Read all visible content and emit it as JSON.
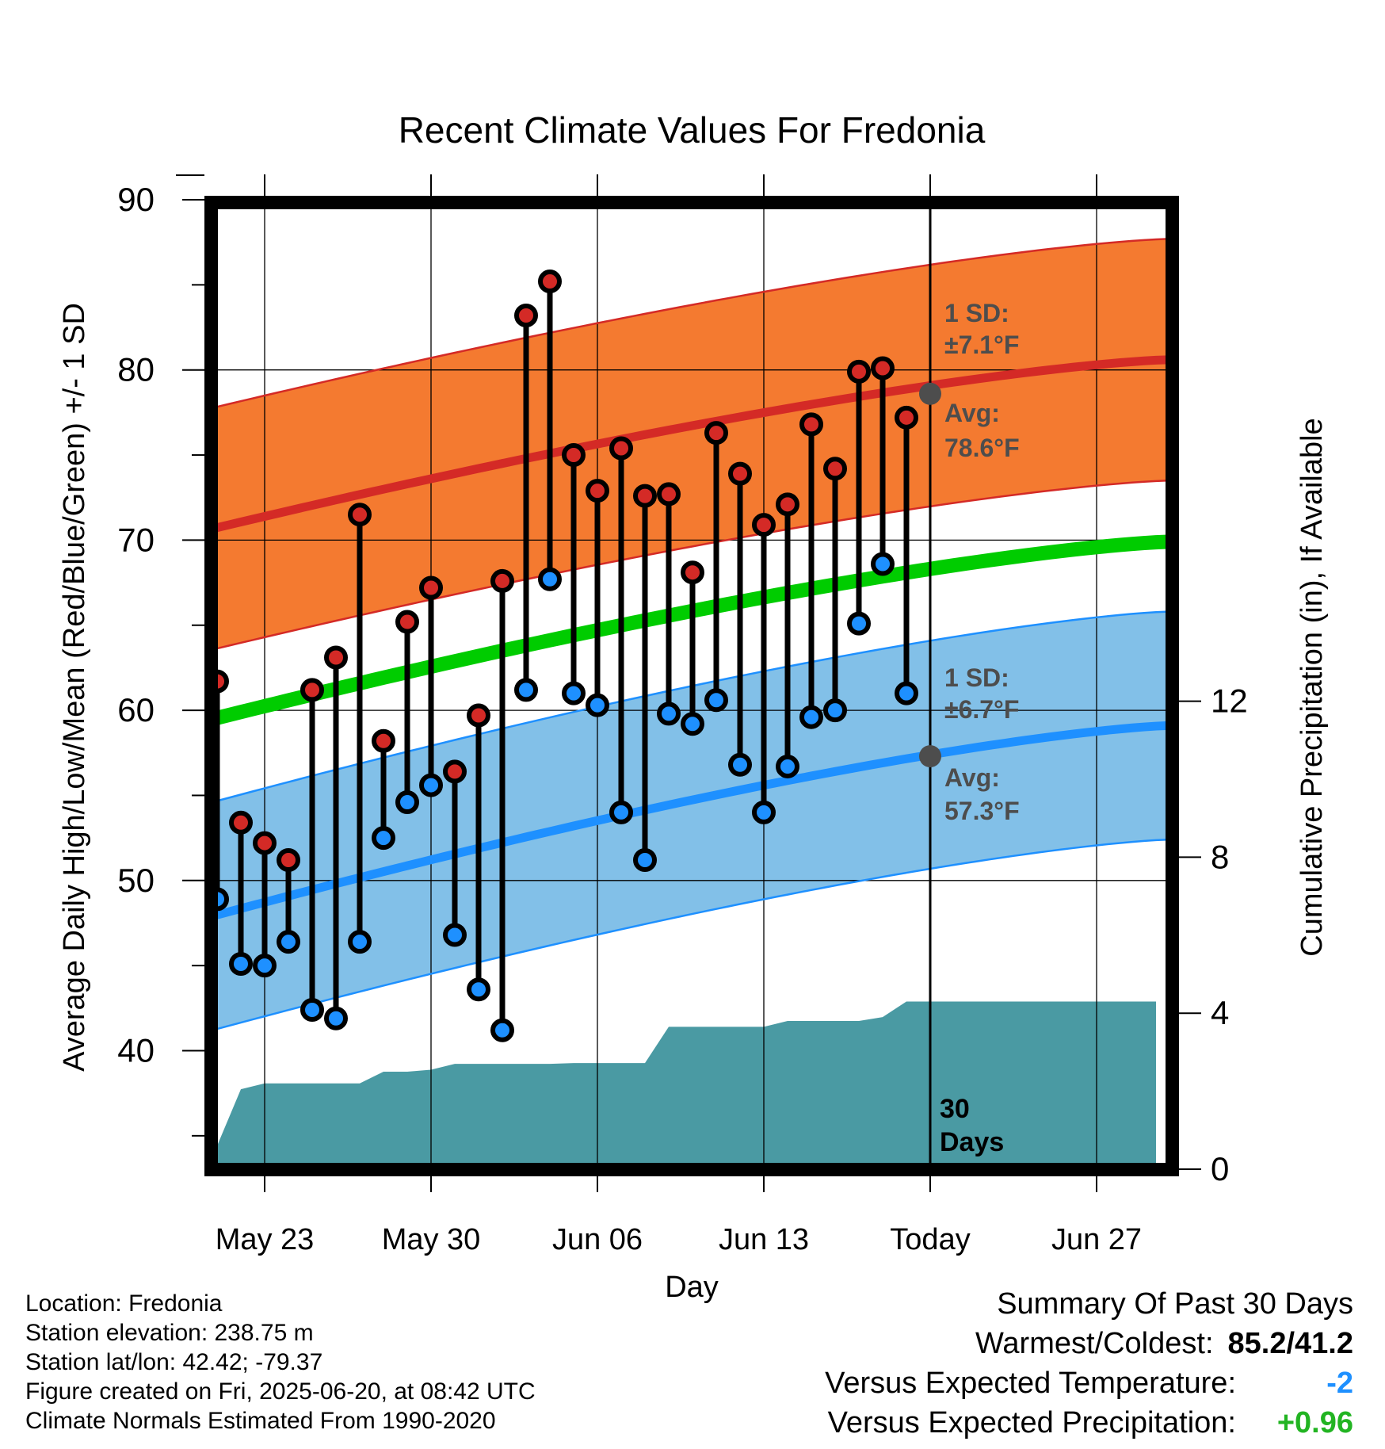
{
  "chart_data": {
    "type": "line",
    "title": "Recent Climate Values For Fredonia",
    "xlabel": "Day",
    "ylabel": "Average Daily High/Low/Mean (Red/Blue/Green) +/- 1 SD",
    "y2label": "Cumulative Precipitation (in), If Available",
    "ylim": [
      35,
      90
    ],
    "y2lim": [
      0,
      24
    ],
    "x_tick_labels": [
      "May 23",
      "May 30",
      "Jun 06",
      "Jun 13",
      "Today",
      "Jun 27"
    ],
    "x_tick_days": [
      2,
      9,
      16,
      23,
      30,
      37
    ],
    "xlim_days": [
      -1,
      40
    ],
    "y_ticks": [
      40,
      50,
      60,
      70,
      80,
      90
    ],
    "y2_ticks": [
      0,
      4,
      8,
      12
    ],
    "grid": true,
    "today_day": 30,
    "today_label": "30 Days",
    "colors": {
      "high_band": "#f47a30",
      "high_line": "#d42a26",
      "low_band": "#82c0e8",
      "low_line": "#1e90ff",
      "mean_line": "#00cc00",
      "precip": "#4a9aa3",
      "annotation": "#4d4d4d",
      "marker_high": "#d42a26",
      "marker_low": "#1e90ff"
    },
    "normals": {
      "high_avg_start": 70.4,
      "high_avg_end": 80.6,
      "high_sd": 7.1,
      "low_avg_start": 47.6,
      "low_avg_end": 59.1,
      "low_sd": 6.7,
      "mean_avg_start": 59.2,
      "mean_avg_end": 69.9
    },
    "today_avg_high": 78.6,
    "today_avg_low": 57.3,
    "annotations": {
      "high_sd": "1 SD:",
      "high_sd_value": "±7.1°F",
      "high_avg": "Avg:",
      "high_avg_value": "78.6°F",
      "low_sd": "1 SD:",
      "low_sd_value": "±6.7°F",
      "low_avg": "Avg:",
      "low_avg_value": "57.3°F"
    },
    "days": [
      0,
      1,
      2,
      3,
      4,
      5,
      6,
      7,
      8,
      9,
      10,
      11,
      12,
      13,
      14,
      15,
      16,
      17,
      18,
      19,
      20,
      21,
      22,
      23,
      24,
      25,
      26,
      27,
      28,
      29
    ],
    "highs": [
      61.7,
      53.4,
      52.2,
      51.2,
      61.2,
      63.1,
      71.5,
      58.2,
      65.2,
      67.2,
      56.4,
      59.7,
      67.6,
      83.2,
      85.2,
      75.0,
      72.9,
      75.4,
      72.6,
      72.7,
      68.1,
      76.3,
      73.9,
      70.9,
      72.1,
      76.8,
      74.2,
      79.9,
      80.1,
      77.2
    ],
    "lows": [
      48.9,
      45.1,
      45.0,
      46.4,
      42.4,
      41.9,
      46.4,
      52.5,
      54.6,
      55.6,
      46.8,
      43.6,
      41.2,
      61.2,
      67.7,
      61.0,
      60.3,
      54.0,
      51.2,
      59.8,
      59.2,
      60.6,
      56.8,
      54.0,
      56.7,
      59.6,
      60.0,
      65.1,
      68.6,
      61.0
    ],
    "precip_cumulative": [
      [
        -0.5,
        0.0
      ],
      [
        0,
        0.6
      ],
      [
        1,
        2.05
      ],
      [
        2,
        2.2
      ],
      [
        3,
        2.2
      ],
      [
        4,
        2.2
      ],
      [
        5,
        2.2
      ],
      [
        6,
        2.2
      ],
      [
        7,
        2.5
      ],
      [
        8,
        2.5
      ],
      [
        9,
        2.55
      ],
      [
        10,
        2.7
      ],
      [
        11,
        2.7
      ],
      [
        12,
        2.7
      ],
      [
        13,
        2.7
      ],
      [
        14,
        2.7
      ],
      [
        15,
        2.72
      ],
      [
        16,
        2.72
      ],
      [
        17,
        2.72
      ],
      [
        18,
        2.72
      ],
      [
        19,
        3.65
      ],
      [
        20,
        3.65
      ],
      [
        21,
        3.65
      ],
      [
        22,
        3.65
      ],
      [
        23,
        3.65
      ],
      [
        24,
        3.8
      ],
      [
        25,
        3.8
      ],
      [
        26,
        3.8
      ],
      [
        27,
        3.8
      ],
      [
        28,
        3.9
      ],
      [
        29,
        4.3
      ],
      [
        30,
        4.3
      ],
      [
        39.5,
        4.3
      ]
    ]
  },
  "info": {
    "location": "Location: Fredonia",
    "elevation": "Station elevation: 238.75 m",
    "latlon": "Station lat/lon: 42.42; -79.37",
    "created": "Figure created on Fri, 2025-06-20, at 08:42 UTC",
    "normals_period": "Climate Normals Estimated From 1990-2020"
  },
  "summary": {
    "title": "Summary Of Past 30 Days",
    "warmest_coldest_label": "Warmest/Coldest:",
    "warmest_coldest_value": "85.2/41.2",
    "temp_label": "Versus Expected Temperature:",
    "temp_value": "-2",
    "temp_color": "#1e90ff",
    "precip_label": "Versus Expected Precipitation:",
    "precip_value": "+0.96",
    "precip_color": "#22b422"
  }
}
